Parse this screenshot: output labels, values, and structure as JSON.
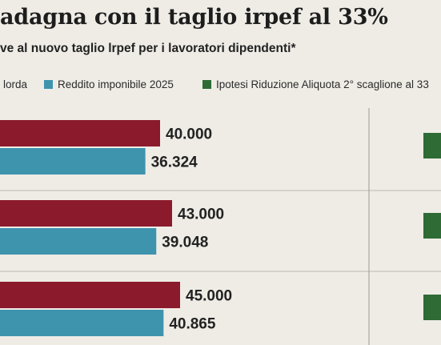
{
  "title": "adagna con il taglio irpef al 33%",
  "subtitle": "ve al nuovo taglio lrpef per i lavoratori dipendenti*",
  "legend": [
    {
      "label": "lorda",
      "color": "#8b1a2c"
    },
    {
      "label": "Reddito imponibile 2025",
      "color": "#3e93ad"
    },
    {
      "label": "Ipotesi Riduzione Aliquota 2° scaglione al 33",
      "color": "#2e6b35"
    }
  ],
  "chart_data": {
    "type": "bar",
    "orientation": "horizontal",
    "title": "adagna con il taglio irpef al 33%",
    "subtitle": "ve al nuovo taglio lrpef per i lavoratori dipendenti*",
    "categories": [
      "",
      "",
      ""
    ],
    "series": [
      {
        "name": "lorda",
        "color": "#8b1a2c",
        "values": [
          40000,
          43000,
          45000
        ],
        "labels": [
          "40.000",
          "43.000",
          "45.000"
        ]
      },
      {
        "name": "Reddito imponibile 2025",
        "color": "#3e93ad",
        "values": [
          36324,
          39048,
          40865
        ],
        "labels": [
          "36.324",
          "39.048",
          "40.865"
        ]
      }
    ],
    "third_series": {
      "name": "Ipotesi Riduzione Aliquota 2° scaglione al 33",
      "color": "#2e6b35"
    },
    "grid": false,
    "legend_position": "top"
  }
}
